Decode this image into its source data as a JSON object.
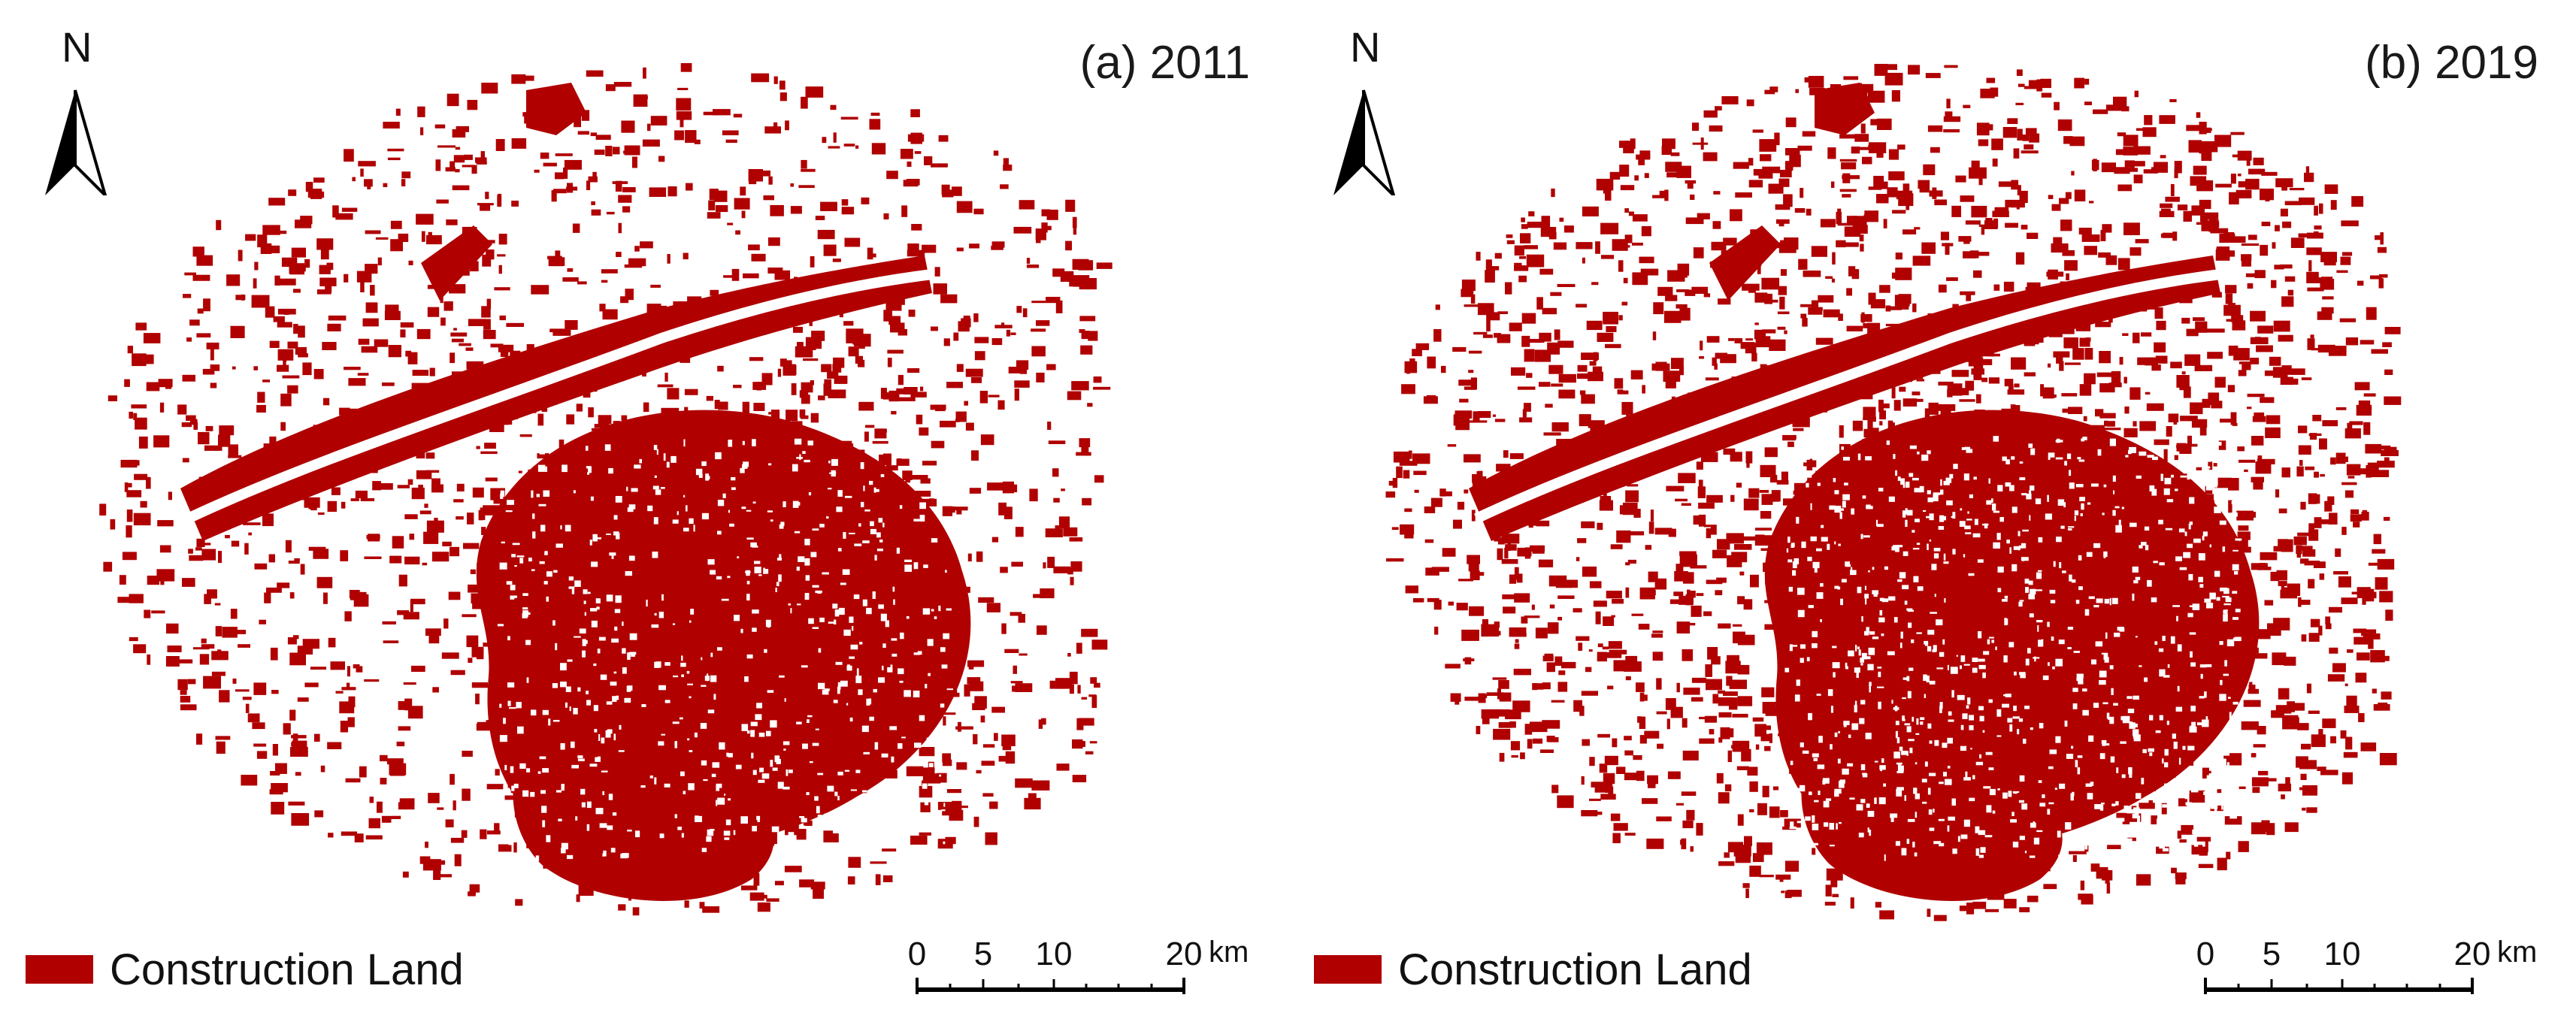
{
  "colors": {
    "construction_land": "#b00000",
    "background": "#ffffff",
    "text": "#111111"
  },
  "panels": [
    {
      "title": "(a) 2011",
      "north_label": "N",
      "legend_label": "Construction Land",
      "scale": {
        "ticks": [
          "0",
          "5",
          "10",
          "20"
        ],
        "unit": "km"
      }
    },
    {
      "title": "(b) 2019",
      "north_label": "N",
      "legend_label": "Construction Land",
      "scale": {
        "ticks": [
          "0",
          "5",
          "10",
          "20"
        ],
        "unit": "km"
      }
    }
  ]
}
